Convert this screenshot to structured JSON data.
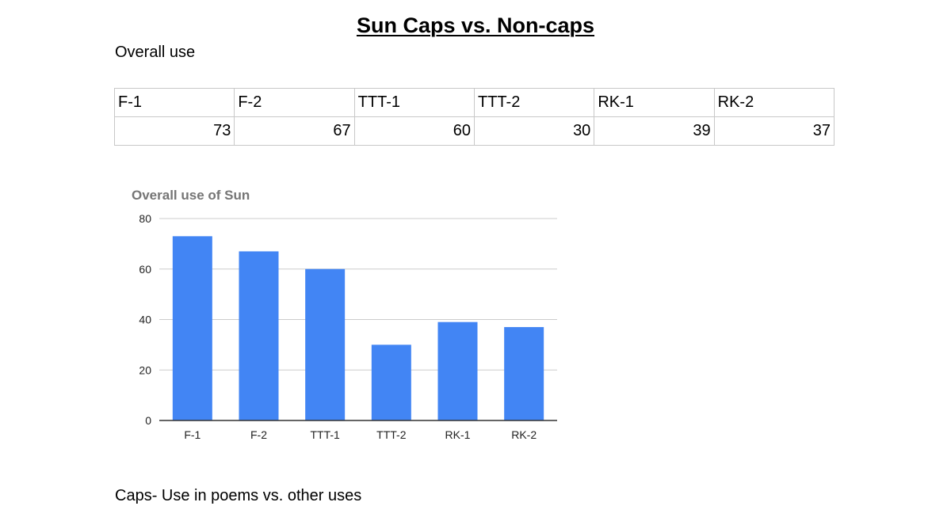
{
  "document": {
    "title": "Sun Caps vs. Non-caps",
    "section1_heading": "Overall use",
    "section2_heading": "Caps- Use in poems vs. other uses"
  },
  "table": {
    "headers": [
      "F-1",
      "F-2",
      "TTT-1",
      "TTT-2",
      "RK-1",
      "RK-2"
    ],
    "values": [
      "73",
      "67",
      "60",
      "30",
      "39",
      "37"
    ]
  },
  "chart_data": {
    "type": "bar",
    "title": "Overall use of Sun",
    "categories": [
      "F-1",
      "F-2",
      "TTT-1",
      "TTT-2",
      "RK-1",
      "RK-2"
    ],
    "values": [
      73,
      67,
      60,
      30,
      39,
      37
    ],
    "xlabel": "",
    "ylabel": "",
    "ylim": [
      0,
      80
    ],
    "yticks": [
      0,
      20,
      40,
      60,
      80
    ],
    "grid": true,
    "legend": "none",
    "colors": {
      "bar": "#4285f4",
      "grid": "#cccccc",
      "axis": "#333333",
      "title": "#757575",
      "tick_label": "#222222"
    }
  }
}
